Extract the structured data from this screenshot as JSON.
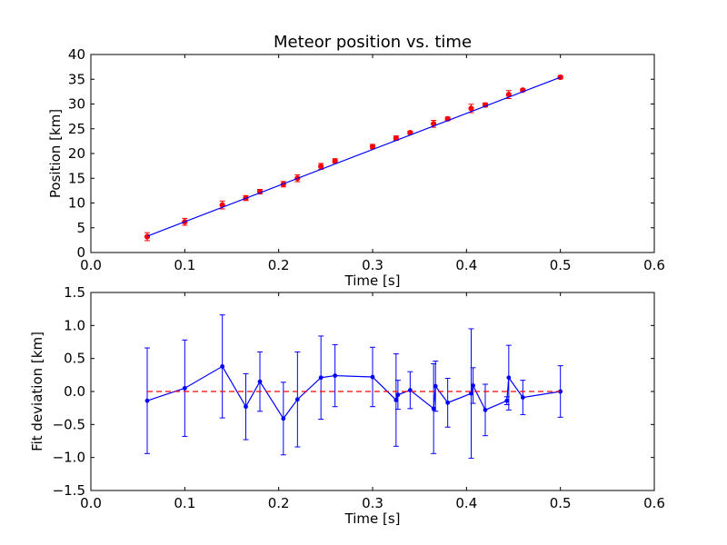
{
  "chart_data": [
    {
      "type": "scatter",
      "title": "Meteor position vs. time",
      "xlabel": "Time [s]",
      "ylabel": "Position [km]",
      "xlim": [
        0.0,
        0.6
      ],
      "ylim": [
        0,
        40
      ],
      "xticks": [
        "0.0",
        "0.1",
        "0.2",
        "0.3",
        "0.4",
        "0.5",
        "0.6"
      ],
      "xtick_values": [
        0.0,
        0.1,
        0.2,
        0.3,
        0.4,
        0.5,
        0.6
      ],
      "yticks": [
        "0",
        "5",
        "10",
        "15",
        "20",
        "25",
        "30",
        "35",
        "40"
      ],
      "ytick_values": [
        0,
        5,
        10,
        15,
        20,
        25,
        30,
        35,
        40
      ],
      "grid": false,
      "series": [
        {
          "kind": "points-with-errorbars",
          "color": "#ff0000",
          "errorbar_color": "#ff0000",
          "x": [
            0.06,
            0.1,
            0.14,
            0.165,
            0.18,
            0.205,
            0.22,
            0.245,
            0.26,
            0.3,
            0.325,
            0.34,
            0.365,
            0.38,
            0.405,
            0.42,
            0.445,
            0.46,
            0.5
          ],
          "y": [
            3.2,
            6.2,
            9.6,
            11.0,
            12.3,
            13.8,
            15.0,
            17.4,
            18.5,
            21.4,
            23.1,
            24.2,
            26.0,
            27.0,
            29.1,
            29.8,
            31.9,
            32.8,
            35.4
          ],
          "err": [
            0.8,
            0.7,
            0.8,
            0.5,
            0.45,
            0.55,
            0.7,
            0.6,
            0.45,
            0.45,
            0.45,
            0.3,
            0.7,
            0.35,
            0.85,
            0.4,
            0.8,
            0.25,
            0.35
          ]
        },
        {
          "kind": "fit-line",
          "color": "#0000ff",
          "x": [
            0.06,
            0.5
          ],
          "y": [
            3.3,
            35.4
          ]
        }
      ]
    },
    {
      "type": "line",
      "title": "",
      "xlabel": "Time [s]",
      "ylabel": "Fit deviation [km]",
      "xlim": [
        0.0,
        0.6
      ],
      "ylim": [
        -1.5,
        1.5
      ],
      "xticks": [
        "0.0",
        "0.1",
        "0.2",
        "0.3",
        "0.4",
        "0.5",
        "0.6"
      ],
      "xtick_values": [
        0.0,
        0.1,
        0.2,
        0.3,
        0.4,
        0.5,
        0.6
      ],
      "yticks": [
        "1.5",
        "1.0",
        "0.5",
        "0.0",
        "−0.5",
        "−1.0",
        "−1.5"
      ],
      "ytick_values": [
        1.5,
        1.0,
        0.5,
        0.0,
        -0.5,
        -1.0,
        -1.5
      ],
      "grid": false,
      "series": [
        {
          "kind": "line-with-errorbars",
          "color": "#0000ff",
          "x": [
            0.06,
            0.1,
            0.14,
            0.165,
            0.18,
            0.205,
            0.22,
            0.245,
            0.26,
            0.3,
            0.325,
            0.327,
            0.34,
            0.365,
            0.367,
            0.38,
            0.405,
            0.407,
            0.42,
            0.443,
            0.445,
            0.46,
            0.5
          ],
          "y": [
            -0.14,
            0.05,
            0.38,
            -0.23,
            0.15,
            -0.41,
            -0.12,
            0.21,
            0.24,
            0.22,
            -0.13,
            -0.05,
            0.02,
            -0.26,
            0.08,
            -0.17,
            -0.03,
            0.09,
            -0.28,
            -0.14,
            0.21,
            -0.09,
            0.0
          ],
          "err": [
            0.8,
            0.73,
            0.78,
            0.5,
            0.45,
            0.55,
            0.72,
            0.63,
            0.47,
            0.45,
            0.7,
            0.22,
            0.28,
            0.68,
            0.38,
            0.37,
            0.98,
            0.27,
            0.39,
            0.06,
            0.49,
            0.26,
            0.39
          ]
        },
        {
          "kind": "zero-reference",
          "color": "#ff0000",
          "dashed": true,
          "x": [
            0.06,
            0.5
          ],
          "y": [
            0.0,
            0.0
          ]
        }
      ]
    }
  ]
}
